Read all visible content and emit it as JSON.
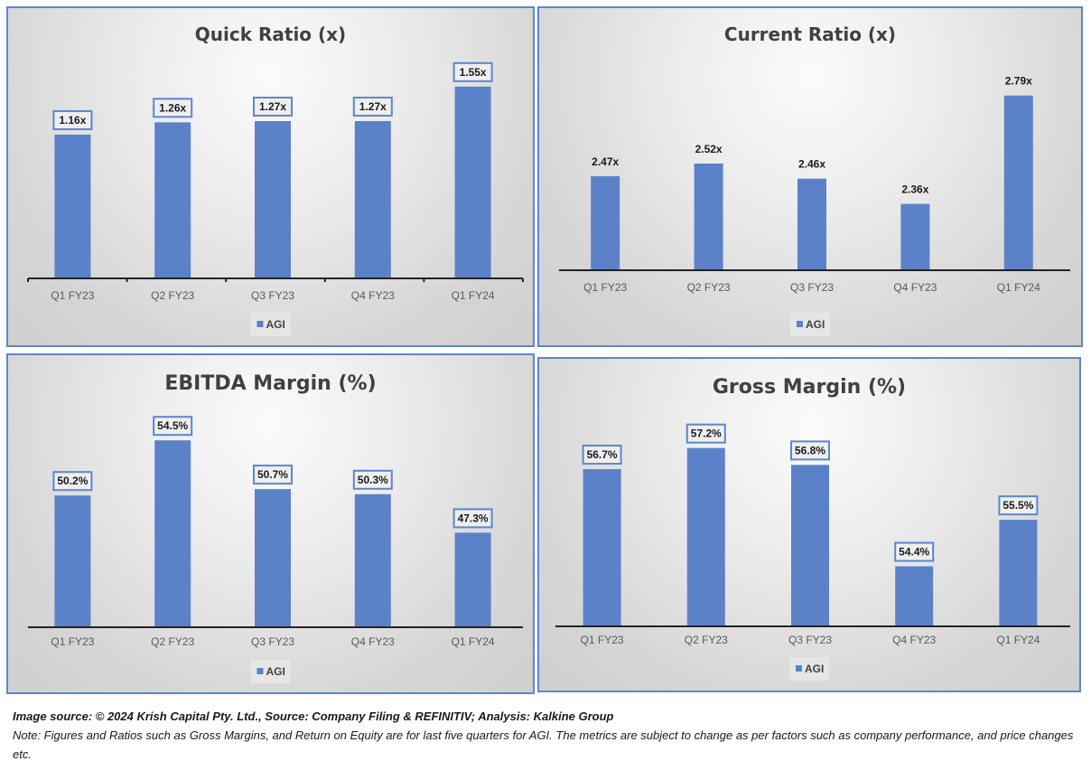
{
  "colors": {
    "bar": "#5b82c8",
    "panel_border": "#5b86cf",
    "axis": "#222222"
  },
  "chart_data": [
    {
      "id": "quick-ratio",
      "type": "bar",
      "title": "Quick Ratio  (x)",
      "categories": [
        "Q1 FY23",
        "Q2 FY23",
        "Q3 FY23",
        "Q4 FY23",
        "Q1 FY24"
      ],
      "series": [
        {
          "name": "AGI",
          "values": [
            1.16,
            1.26,
            1.27,
            1.27,
            1.55
          ]
        }
      ],
      "labels": [
        "1.16x",
        "1.26x",
        "1.27x",
        "1.27x",
        "1.55x"
      ],
      "boxed_labels": true,
      "axis_ticks": true,
      "ylim": [
        0.0,
        1.6
      ],
      "legend": "bottom",
      "grid": false,
      "xlabel": "",
      "ylabel": ""
    },
    {
      "id": "current-ratio",
      "type": "bar",
      "title": "Current Ratio (x)",
      "categories": [
        "Q1 FY23",
        "Q2 FY23",
        "Q3 FY23",
        "Q4 FY23",
        "Q1 FY24"
      ],
      "series": [
        {
          "name": "AGI",
          "values": [
            2.47,
            2.52,
            2.46,
            2.36,
            2.79
          ]
        }
      ],
      "labels": [
        "2.47x",
        "2.52x",
        "2.46x",
        "2.36x",
        "2.79x"
      ],
      "boxed_labels": false,
      "axis_ticks": false,
      "ylim": [
        2.1,
        2.85
      ],
      "legend": "bottom",
      "grid": false,
      "xlabel": "",
      "ylabel": ""
    },
    {
      "id": "ebitda-margin",
      "type": "bar",
      "title": "EBITDA Margin (%)",
      "categories": [
        "Q1 FY23",
        "Q2 FY23",
        "Q3 FY23",
        "Q4 FY23",
        "Q1 FY24"
      ],
      "series": [
        {
          "name": "AGI",
          "values": [
            50.2,
            54.5,
            50.7,
            50.3,
            47.3
          ]
        }
      ],
      "labels": [
        "50.2%",
        "54.5%",
        "50.7%",
        "50.3%",
        "47.3%"
      ],
      "boxed_labels": true,
      "axis_ticks": false,
      "ylim": [
        40.0,
        55.5
      ],
      "legend": "bottom",
      "grid": false,
      "xlabel": "",
      "ylabel": ""
    },
    {
      "id": "gross-margin",
      "type": "bar",
      "title": "Gross Margin (%)",
      "categories": [
        "Q1 FY23",
        "Q2 FY23",
        "Q3 FY23",
        "Q4 FY23",
        "Q1 FY24"
      ],
      "series": [
        {
          "name": "AGI",
          "values": [
            56.7,
            57.2,
            56.8,
            54.4,
            55.5
          ]
        }
      ],
      "labels": [
        "56.7%",
        "57.2%",
        "56.8%",
        "54.4%",
        "55.5%"
      ],
      "boxed_labels": true,
      "axis_ticks": false,
      "ylim": [
        53.0,
        57.6
      ],
      "legend": "bottom",
      "grid": false,
      "xlabel": "",
      "ylabel": ""
    }
  ],
  "footer": {
    "source": "Image source: © 2024 Krish Capital Pty. Ltd., Source: Company Filing & REFINITIV; Analysis: Kalkine Group",
    "note": "Note: Figures and Ratios such as  Gross Margins, and Return on Equity are for last five quarters for AGI. The metrics are subject to change as per factors such as company performance, and price changes etc."
  }
}
